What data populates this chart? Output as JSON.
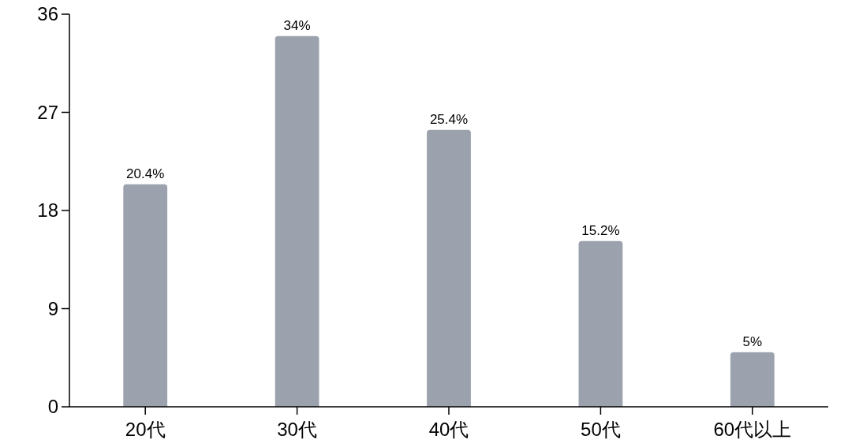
{
  "chart_data": {
    "type": "bar",
    "categories": [
      "20代",
      "30代",
      "40代",
      "50代",
      "60代以上"
    ],
    "values": [
      20.4,
      34,
      25.4,
      15.2,
      5
    ],
    "value_labels": [
      "20.4%",
      "34%",
      "25.4%",
      "15.2%",
      "5%"
    ],
    "color": "#9ca2ad",
    "ylim": [
      0,
      36
    ],
    "yticks": [
      0,
      9,
      18,
      27,
      36
    ]
  }
}
